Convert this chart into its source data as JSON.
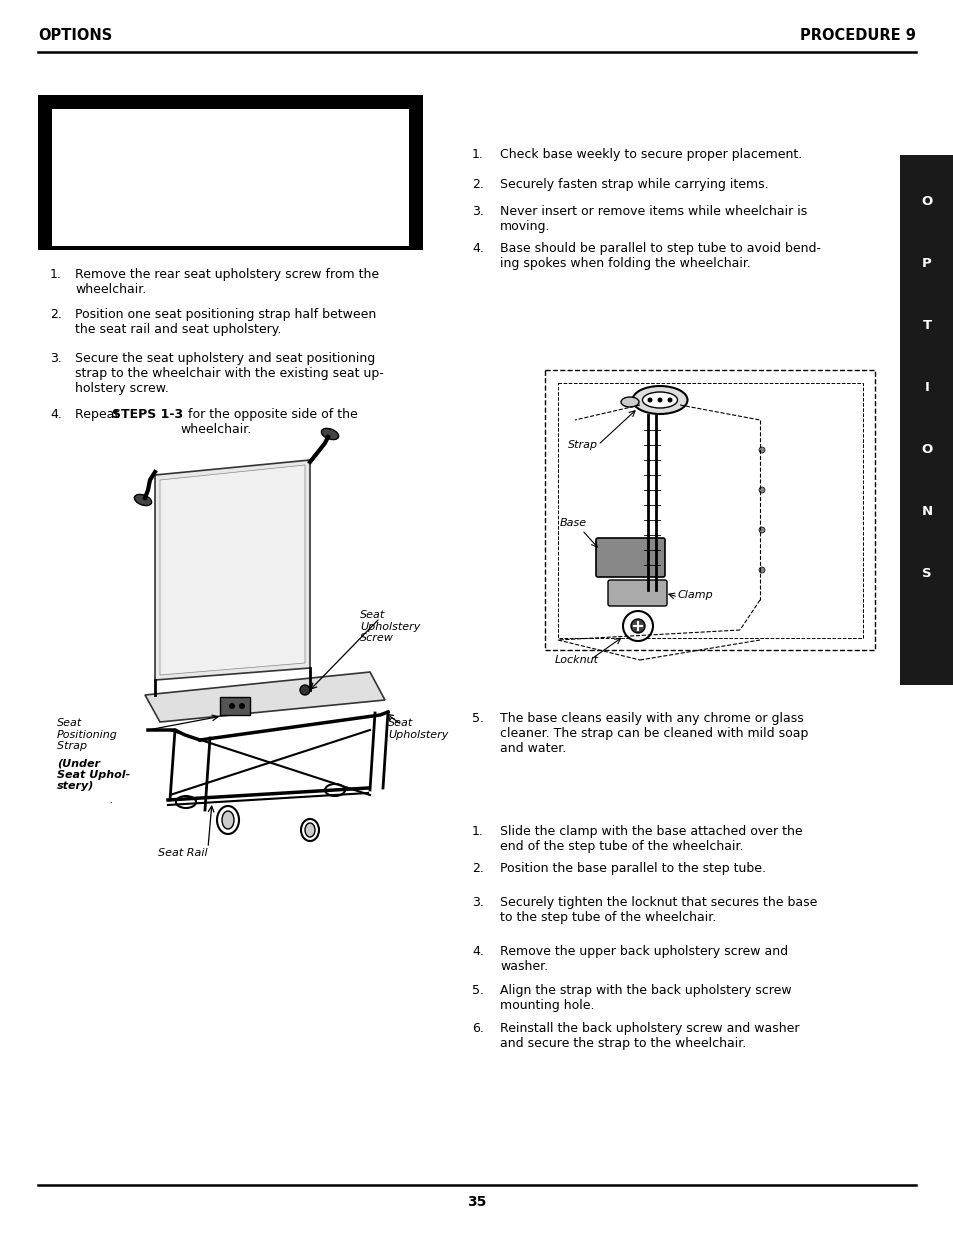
{
  "page_num": "35",
  "header_left": "OPTIONS",
  "header_right": "PROCEDURE 9",
  "bg_color": "#ffffff",
  "sidebar_letters": [
    "O",
    "P",
    "T",
    "I",
    "O",
    "N",
    "S"
  ],
  "left_instructions_1": [
    {
      "n": "1.",
      "text": "Remove the rear seat upholstery screw from the\nwheelchair."
    },
    {
      "n": "2.",
      "text": "Position one seat positioning strap half between\nthe seat rail and seat upholstery."
    },
    {
      "n": "3.",
      "text": "Secure the seat upholstery and seat positioning\nstrap to the wheelchair with the existing seat up-\nholstery screw."
    }
  ],
  "left_item4_prefix": "4.",
  "left_item4_text1": "Repeat ",
  "left_item4_bold": "STEPS 1-3",
  "left_item4_text2": "  for the opposite side of the\nwheelchair.",
  "right_instructions_top": [
    {
      "n": "1.",
      "text": "Check base weekly to secure proper placement."
    },
    {
      "n": "2.",
      "text": "Securely fasten strap while carrying items."
    },
    {
      "n": "3.",
      "text": "Never insert or remove items while wheelchair is\nmoving."
    },
    {
      "n": "4.",
      "text": "Base should be parallel to step tube to avoid bend-\ning spokes when folding the wheelchair."
    }
  ],
  "right_item5": "The base cleans easily with any chrome or glass\ncleaner. The strap can be cleaned with mild soap\nand water.",
  "right_instructions_bottom": [
    {
      "n": "1.",
      "text": "Slide the clamp with the base attached over the\nend of the step tube of the wheelchair."
    },
    {
      "n": "2.",
      "text": "Position the base parallel to the step tube."
    },
    {
      "n": "3.",
      "text": "Securely tighten the locknut that secures the base\nto the step tube of the wheelchair."
    },
    {
      "n": "4.",
      "text": "Remove the upper back upholstery screw and\nwasher."
    },
    {
      "n": "5.",
      "text": "Align the strap with the back upholstery screw\nmounting hole."
    },
    {
      "n": "6.",
      "text": "Reinstall the back upholstery screw and washer\nand secure the strap to the wheelchair."
    }
  ],
  "font_size_header": 10.5,
  "font_size_body": 9.0,
  "font_size_label": 8.0,
  "font_size_page": 10
}
